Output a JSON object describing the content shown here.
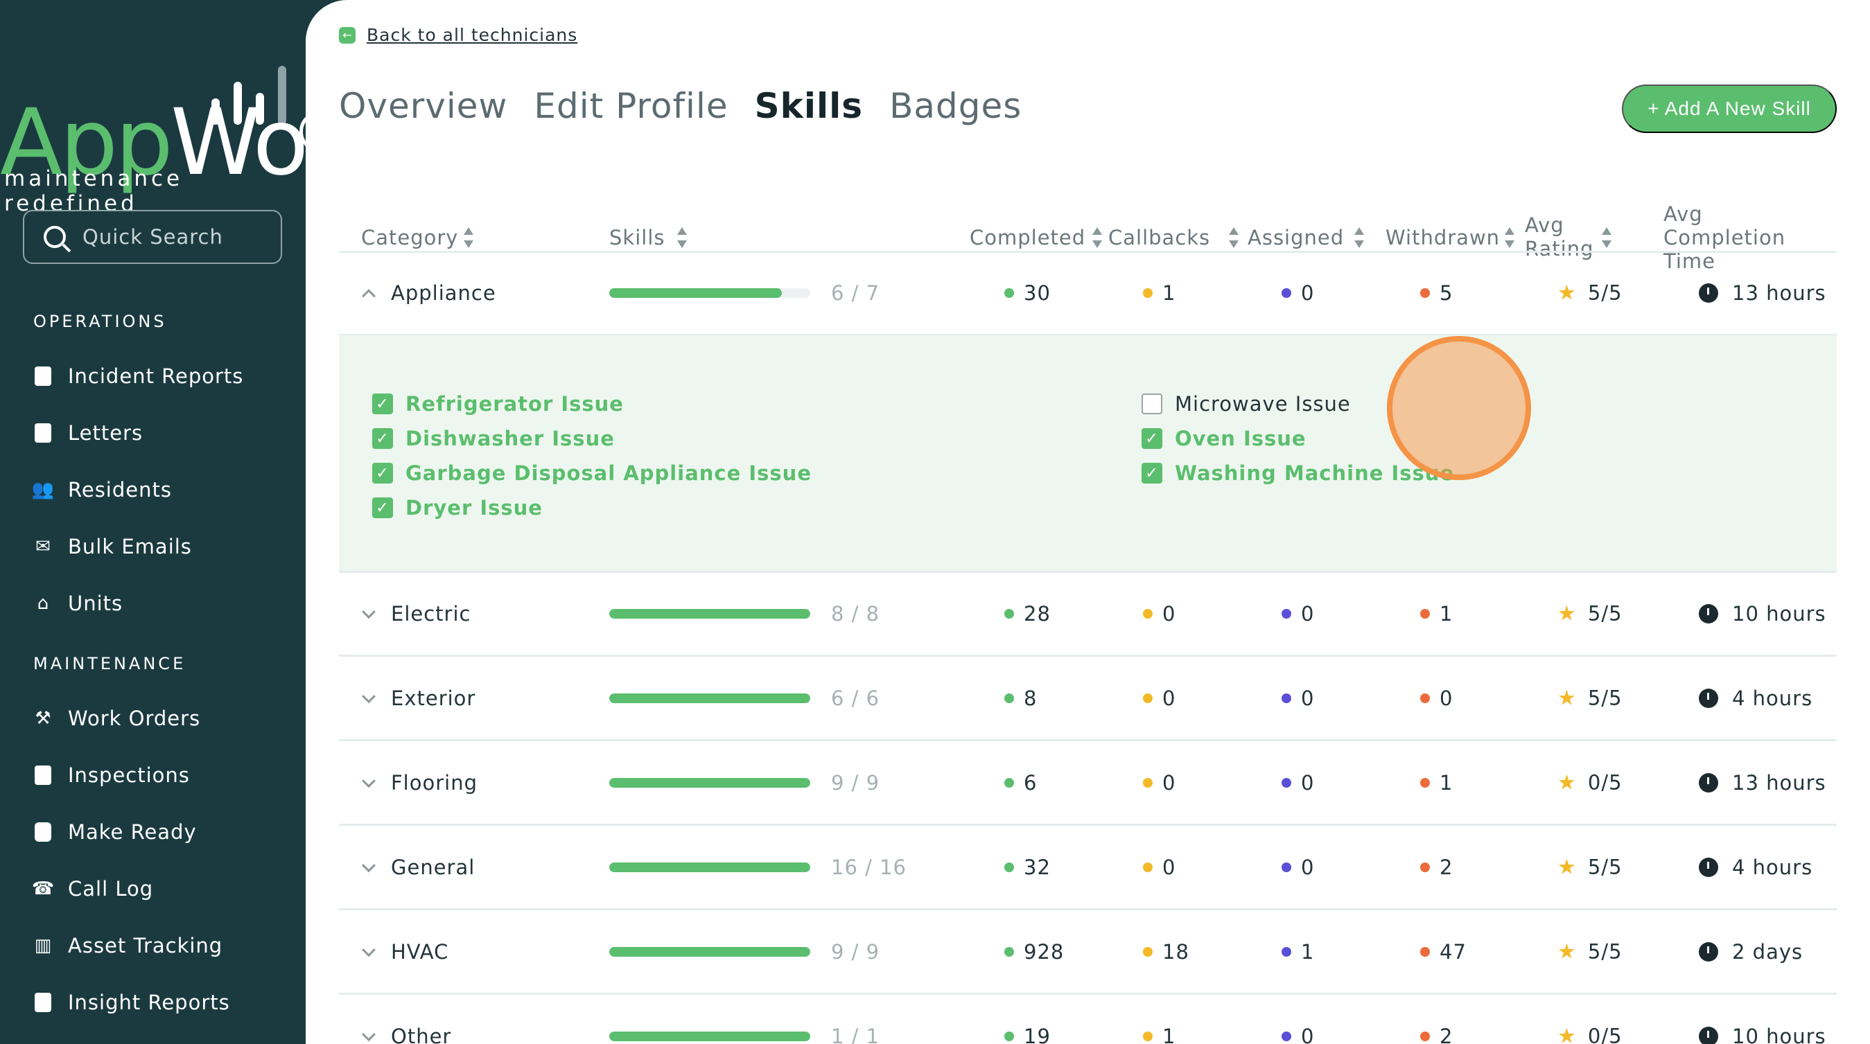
{
  "brand": {
    "word_left": "App",
    "word_right": "Work",
    "tagline": "maintenance redefined"
  },
  "search": {
    "placeholder": "Quick Search"
  },
  "sidebar": {
    "sections": [
      {
        "title": "OPERATIONS",
        "items": [
          {
            "label": "Incident Reports",
            "icon": "document-icon"
          },
          {
            "label": "Letters",
            "icon": "file-upload-icon"
          },
          {
            "label": "Residents",
            "icon": "users-icon"
          },
          {
            "label": "Bulk Emails",
            "icon": "envelope-open-icon"
          },
          {
            "label": "Units",
            "icon": "home-icon"
          }
        ]
      },
      {
        "title": "MAINTENANCE",
        "items": [
          {
            "label": "Work Orders",
            "icon": "drill-icon"
          },
          {
            "label": "Inspections",
            "icon": "checklist-icon"
          },
          {
            "label": "Make Ready",
            "icon": "calendar-icon"
          },
          {
            "label": "Call Log",
            "icon": "phone-icon"
          },
          {
            "label": "Asset Tracking",
            "icon": "barcode-icon"
          },
          {
            "label": "Insight Reports",
            "icon": "report-icon"
          }
        ]
      }
    ]
  },
  "header": {
    "back_link": "Back to all technicians",
    "tabs": [
      "Overview",
      "Edit Profile",
      "Skills",
      "Badges"
    ],
    "active_tab": "Skills",
    "add_button": "+ Add A New Skill"
  },
  "table": {
    "columns": {
      "category": "Category",
      "skills": "Skills",
      "completed": "Completed",
      "callbacks": "Callbacks",
      "assigned": "Assigned",
      "withdrawn": "Withdrawn",
      "avg_rating_1": "Avg",
      "avg_rating_2": "Rating",
      "avg_time_1": "Avg",
      "avg_time_2": "Completion",
      "avg_time_3": "Time"
    },
    "rows": [
      {
        "category": "Appliance",
        "ratio": "6 / 7",
        "progress": 0.857,
        "completed": "30",
        "callbacks": "1",
        "assigned": "0",
        "withdrawn": "5",
        "rating": "5/5",
        "time": "13 hours",
        "expanded": true
      },
      {
        "category": "Electric",
        "ratio": "8 / 8",
        "progress": 1,
        "completed": "28",
        "callbacks": "0",
        "assigned": "0",
        "withdrawn": "1",
        "rating": "5/5",
        "time": "10 hours"
      },
      {
        "category": "Exterior",
        "ratio": "6 / 6",
        "progress": 1,
        "completed": "8",
        "callbacks": "0",
        "assigned": "0",
        "withdrawn": "0",
        "rating": "5/5",
        "time": "4 hours"
      },
      {
        "category": "Flooring",
        "ratio": "9 / 9",
        "progress": 1,
        "completed": "6",
        "callbacks": "0",
        "assigned": "0",
        "withdrawn": "1",
        "rating": "0/5",
        "time": "13 hours"
      },
      {
        "category": "General",
        "ratio": "16 / 16",
        "progress": 1,
        "completed": "32",
        "callbacks": "0",
        "assigned": "0",
        "withdrawn": "2",
        "rating": "5/5",
        "time": "4 hours"
      },
      {
        "category": "HVAC",
        "ratio": "9 / 9",
        "progress": 1,
        "completed": "928",
        "callbacks": "18",
        "assigned": "1",
        "withdrawn": "47",
        "rating": "5/5",
        "time": "2 days"
      },
      {
        "category": "Other",
        "ratio": "1 / 1",
        "progress": 1,
        "completed": "19",
        "callbacks": "1",
        "assigned": "0",
        "withdrawn": "2",
        "rating": "0/5",
        "time": "10 hours"
      }
    ],
    "appliance_skills": [
      {
        "label": "Refrigerator Issue",
        "checked": true
      },
      {
        "label": "Dishwasher Issue",
        "checked": true
      },
      {
        "label": "Garbage Disposal Appliance Issue",
        "checked": true
      },
      {
        "label": "Dryer Issue",
        "checked": true
      },
      {
        "label": "Microwave Issue",
        "checked": false
      },
      {
        "label": "Oven Issue",
        "checked": true
      },
      {
        "label": "Washing Machine Issue",
        "checked": true
      }
    ]
  },
  "colors": {
    "completed": "#5bbe6e",
    "callbacks": "#f3b928",
    "assigned": "#5a4fd6",
    "withdrawn": "#ec6b3a",
    "accent": "#5bbe6e"
  }
}
